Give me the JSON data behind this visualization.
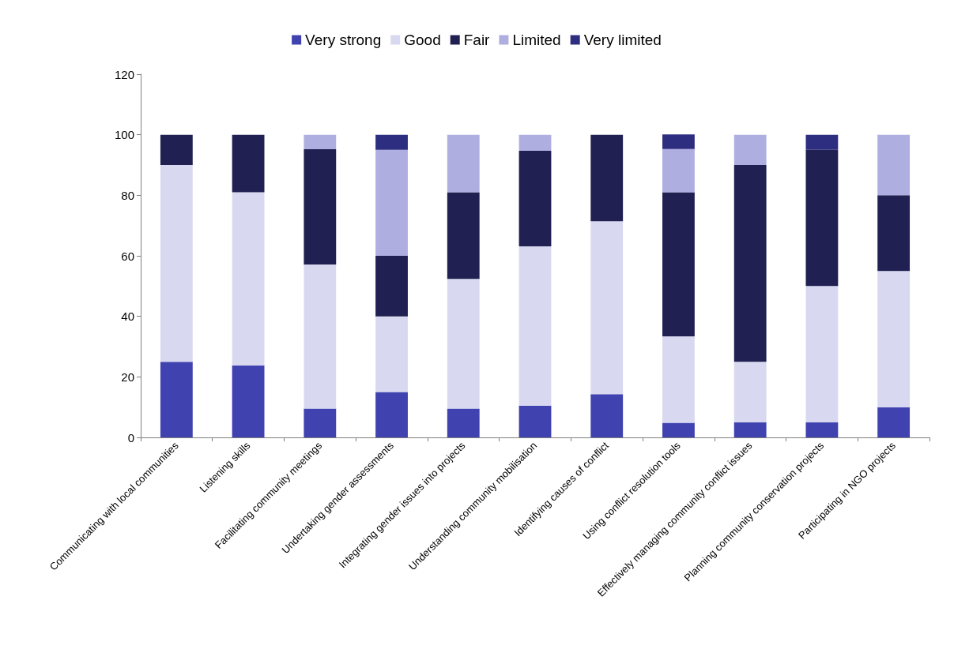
{
  "chart_data": {
    "type": "bar",
    "stacked": true,
    "categories": [
      "Communicating with local communities",
      "Listening skills",
      "Facilitating community meetings",
      "Undertaking gender assessments",
      "Integrating gender issues into projects",
      "Understanding community mobilisation",
      "Identifying causes of conflict",
      "Using conflict resolution tools",
      "Effectively managing community conflict issues",
      "Planning community conservation projects",
      "Participating in NGO projects"
    ],
    "series": [
      {
        "name": "Very strong",
        "color": "#4042b0",
        "values": [
          25,
          23.8,
          9.5,
          15,
          9.5,
          10.5,
          14.3,
          4.8,
          5,
          5,
          10
        ]
      },
      {
        "name": "Good",
        "color": "#d8d9f1",
        "values": [
          65,
          57.2,
          47.6,
          25,
          42.9,
          52.6,
          57.1,
          28.6,
          20,
          45,
          45
        ]
      },
      {
        "name": "Fair",
        "color": "#202152",
        "values": [
          10,
          19,
          38.1,
          20,
          28.6,
          31.6,
          28.6,
          47.6,
          65,
          45,
          25
        ]
      },
      {
        "name": "Limited",
        "color": "#aeafe0",
        "values": [
          0,
          0,
          4.8,
          35,
          19,
          5.3,
          0,
          14.3,
          10,
          0,
          20
        ]
      },
      {
        "name": "Very limited",
        "color": "#2d2e80",
        "values": [
          0,
          0,
          0,
          5,
          0,
          0,
          0,
          4.8,
          0,
          5,
          0
        ]
      }
    ],
    "ylim": [
      0,
      120
    ],
    "yticks": [
      0,
      20,
      40,
      60,
      80,
      100,
      120
    ],
    "grid": false,
    "legend": "top"
  }
}
